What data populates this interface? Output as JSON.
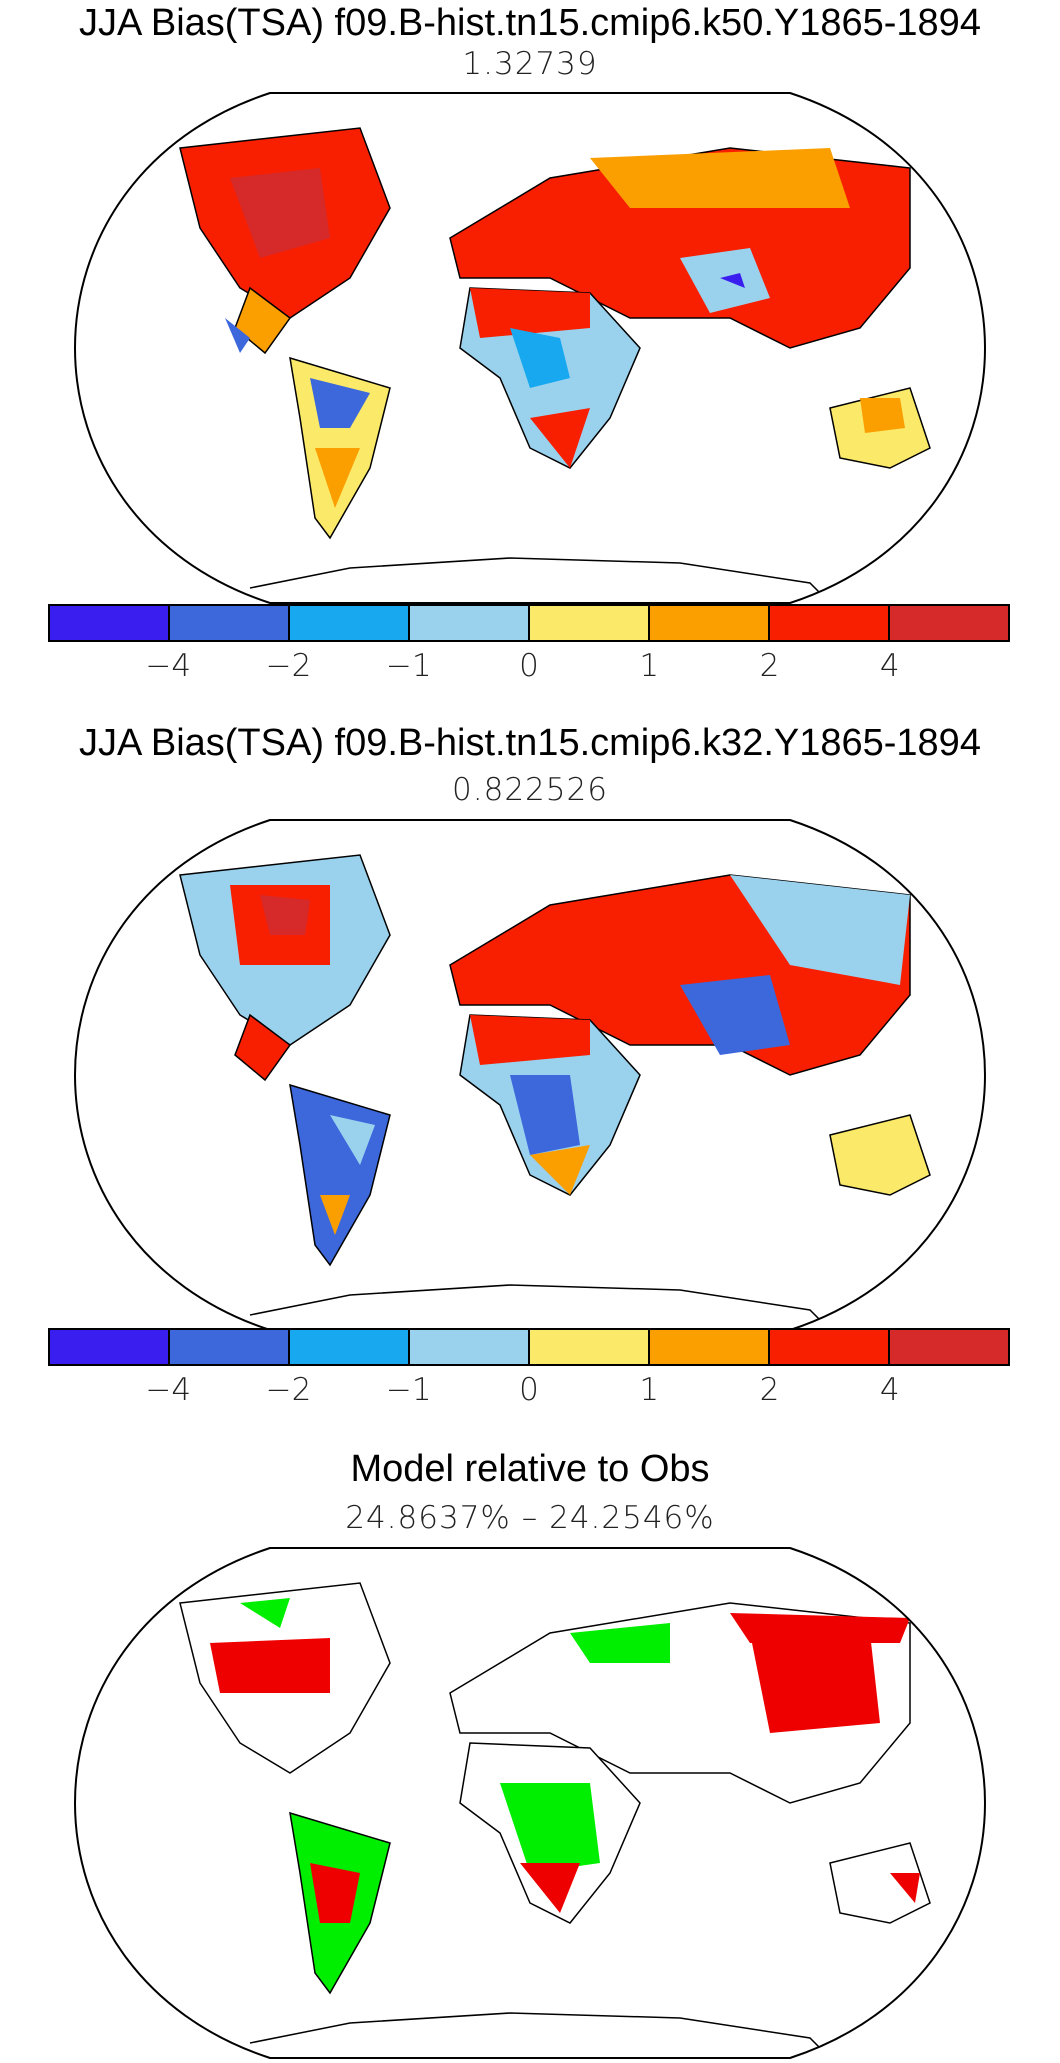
{
  "panels": [
    {
      "title": "JJA Bias(TSA) f09.B-hist.tn15.cmip6.k50.Y1865-1894",
      "value": "1.32739"
    },
    {
      "title": "JJA Bias(TSA) f09.B-hist.tn15.cmip6.k32.Y1865-1894",
      "value": "0.822526"
    },
    {
      "title": "Model relative to Obs",
      "value": "24.8637% – 24.2546%"
    }
  ],
  "colorbar": {
    "colors": [
      "#3a1ef0",
      "#3c68dc",
      "#18a8f0",
      "#9ad2ee",
      "#fbe96a",
      "#fb9e00",
      "#f81f00",
      "#d62a2a"
    ],
    "tick_labels": [
      "−4",
      "−2",
      "−1",
      "0",
      "1",
      "2",
      "4"
    ]
  },
  "colors": {
    "better": "#00ee00",
    "worse": "#ee0000"
  }
}
